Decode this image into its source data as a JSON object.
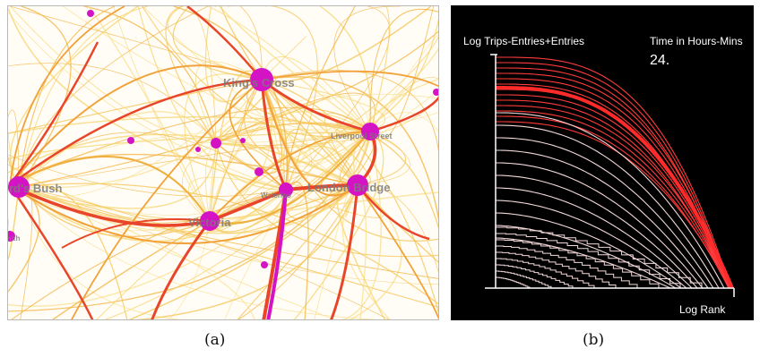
{
  "panel_a": {
    "station_labels": [
      "King's Cross",
      "Liverpool Street",
      "Shepherd's Bush",
      "London Bridge",
      "Victoria",
      "Hammersmith",
      "Waterloo"
    ],
    "colors": {
      "background": "#fffdf6",
      "thin_arc": "#f7d36b",
      "mid_arc": "#f2a23a",
      "thick_arc": "#e8452a",
      "node": "#d413c4",
      "label": "#7a7a7a"
    }
  },
  "panel_b": {
    "y_axis_label": "Log Trips-Entries+Entries",
    "x_axis_label": "Log Rank",
    "time_label": "Time in Hours-Mins",
    "time_value": "24.",
    "colors": {
      "background": "#000000",
      "curve_light": "#f3d9d9",
      "curve_red": "#ff3b3b",
      "axis": "#ffffff"
    }
  },
  "captions": {
    "a": "(a)",
    "b": "(b)"
  }
}
